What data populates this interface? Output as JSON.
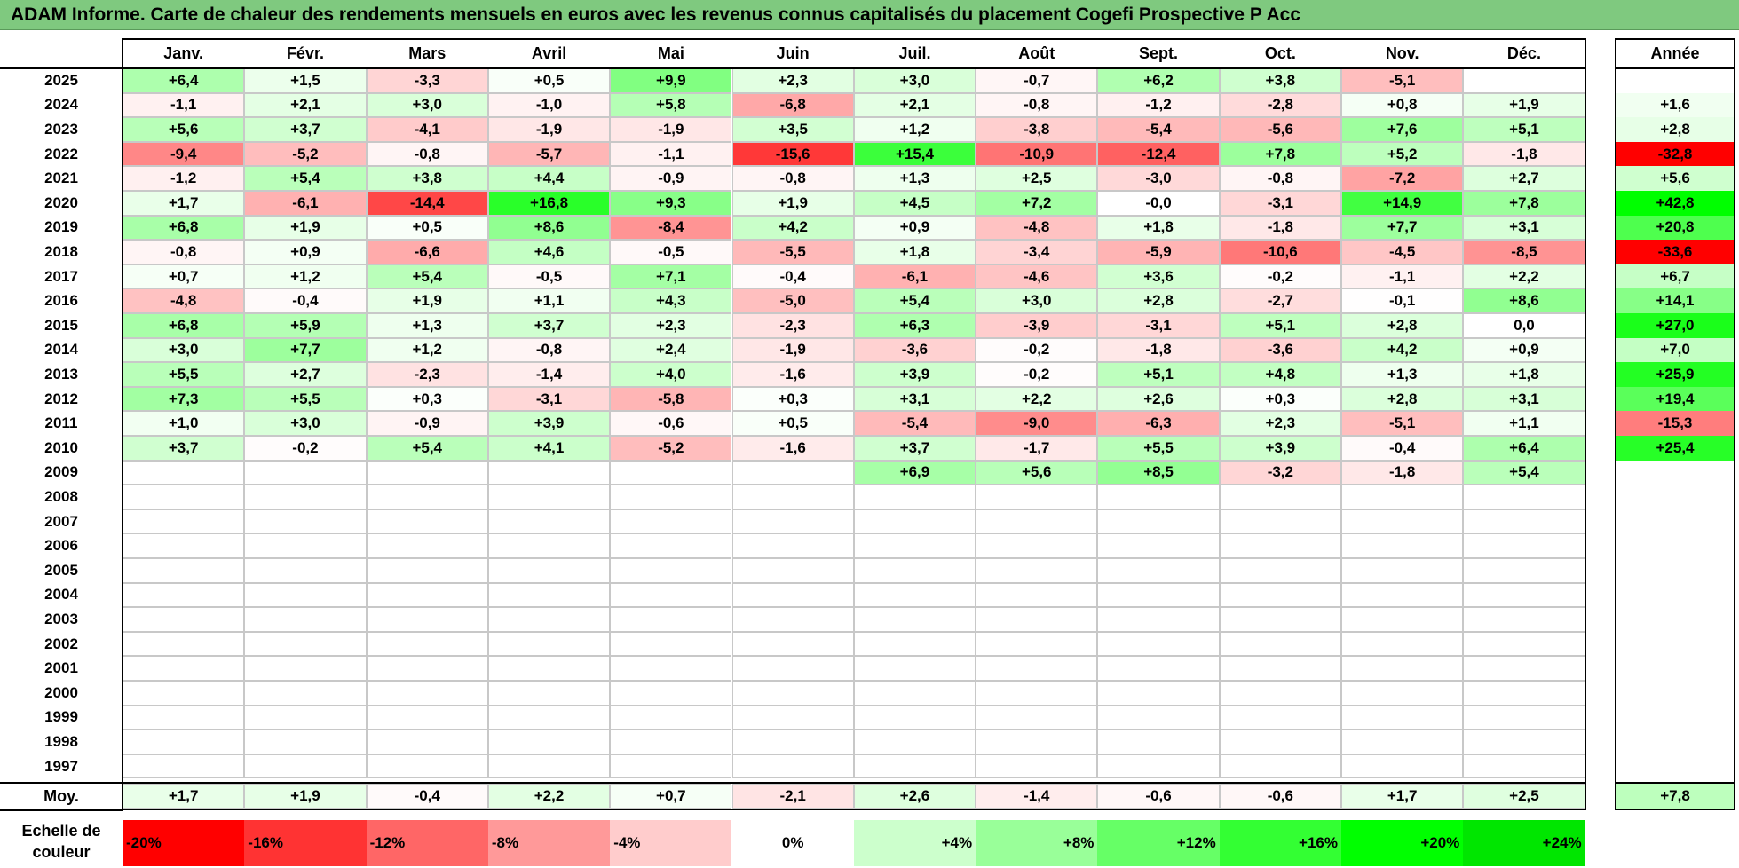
{
  "title": "ADAM Informe. Carte de chaleur des rendements mensuels en euros avec les revenus connus capitalisés du placement Cogefi Prospective P Acc",
  "chart_data": {
    "type": "heatmap",
    "title": "ADAM Informe. Carte de chaleur des rendements mensuels en euros avec les revenus connus capitalisés du placement Cogefi Prospective P Acc",
    "months": [
      "Janv.",
      "Févr.",
      "Mars",
      "Avril",
      "Mai",
      "Juin",
      "Juil.",
      "Août",
      "Sept.",
      "Oct.",
      "Nov.",
      "Déc."
    ],
    "year_header": "Année",
    "rows": [
      {
        "year": "2025",
        "values": [
          "+6,4",
          "+1,5",
          "-3,3",
          "+0,5",
          "+9,9",
          "+2,3",
          "+3,0",
          "-0,7",
          "+6,2",
          "+3,8",
          "-5,1",
          ""
        ],
        "annual": ""
      },
      {
        "year": "2024",
        "values": [
          "-1,1",
          "+2,1",
          "+3,0",
          "-1,0",
          "+5,8",
          "-6,8",
          "+2,1",
          "-0,8",
          "-1,2",
          "-2,8",
          "+0,8",
          "+1,9"
        ],
        "annual": "+1,6"
      },
      {
        "year": "2023",
        "values": [
          "+5,6",
          "+3,7",
          "-4,1",
          "-1,9",
          "-1,9",
          "+3,5",
          "+1,2",
          "-3,8",
          "-5,4",
          "-5,6",
          "+7,6",
          "+5,1"
        ],
        "annual": "+2,8"
      },
      {
        "year": "2022",
        "values": [
          "-9,4",
          "-5,2",
          "-0,8",
          "-5,7",
          "-1,1",
          "-15,6",
          "+15,4",
          "-10,9",
          "-12,4",
          "+7,8",
          "+5,2",
          "-1,8"
        ],
        "annual": "-32,8"
      },
      {
        "year": "2021",
        "values": [
          "-1,2",
          "+5,4",
          "+3,8",
          "+4,4",
          "-0,9",
          "-0,8",
          "+1,3",
          "+2,5",
          "-3,0",
          "-0,8",
          "-7,2",
          "+2,7"
        ],
        "annual": "+5,6"
      },
      {
        "year": "2020",
        "values": [
          "+1,7",
          "-6,1",
          "-14,4",
          "+16,8",
          "+9,3",
          "+1,9",
          "+4,5",
          "+7,2",
          "-0,0",
          "-3,1",
          "+14,9",
          "+7,8"
        ],
        "annual": "+42,8"
      },
      {
        "year": "2019",
        "values": [
          "+6,8",
          "+1,9",
          "+0,5",
          "+8,6",
          "-8,4",
          "+4,2",
          "+0,9",
          "-4,8",
          "+1,8",
          "-1,8",
          "+7,7",
          "+3,1"
        ],
        "annual": "+20,8"
      },
      {
        "year": "2018",
        "values": [
          "-0,8",
          "+0,9",
          "-6,6",
          "+4,6",
          "-0,5",
          "-5,5",
          "+1,8",
          "-3,4",
          "-5,9",
          "-10,6",
          "-4,5",
          "-8,5"
        ],
        "annual": "-33,6"
      },
      {
        "year": "2017",
        "values": [
          "+0,7",
          "+1,2",
          "+5,4",
          "-0,5",
          "+7,1",
          "-0,4",
          "-6,1",
          "-4,6",
          "+3,6",
          "-0,2",
          "-1,1",
          "+2,2"
        ],
        "annual": "+6,7"
      },
      {
        "year": "2016",
        "values": [
          "-4,8",
          "-0,4",
          "+1,9",
          "+1,1",
          "+4,3",
          "-5,0",
          "+5,4",
          "+3,0",
          "+2,8",
          "-2,7",
          "-0,1",
          "+8,6"
        ],
        "annual": "+14,1"
      },
      {
        "year": "2015",
        "values": [
          "+6,8",
          "+5,9",
          "+1,3",
          "+3,7",
          "+2,3",
          "-2,3",
          "+6,3",
          "-3,9",
          "-3,1",
          "+5,1",
          "+2,8",
          "0,0"
        ],
        "annual": "+27,0"
      },
      {
        "year": "2014",
        "values": [
          "+3,0",
          "+7,7",
          "+1,2",
          "-0,8",
          "+2,4",
          "-1,9",
          "-3,6",
          "-0,2",
          "-1,8",
          "-3,6",
          "+4,2",
          "+0,9"
        ],
        "annual": "+7,0"
      },
      {
        "year": "2013",
        "values": [
          "+5,5",
          "+2,7",
          "-2,3",
          "-1,4",
          "+4,0",
          "-1,6",
          "+3,9",
          "-0,2",
          "+5,1",
          "+4,8",
          "+1,3",
          "+1,8"
        ],
        "annual": "+25,9"
      },
      {
        "year": "2012",
        "values": [
          "+7,3",
          "+5,5",
          "+0,3",
          "-3,1",
          "-5,8",
          "+0,3",
          "+3,1",
          "+2,2",
          "+2,6",
          "+0,3",
          "+2,8",
          "+3,1"
        ],
        "annual": "+19,4"
      },
      {
        "year": "2011",
        "values": [
          "+1,0",
          "+3,0",
          "-0,9",
          "+3,9",
          "-0,6",
          "+0,5",
          "-5,4",
          "-9,0",
          "-6,3",
          "+2,3",
          "-5,1",
          "+1,1"
        ],
        "annual": "-15,3"
      },
      {
        "year": "2010",
        "values": [
          "+3,7",
          "-0,2",
          "+5,4",
          "+4,1",
          "-5,2",
          "-1,6",
          "+3,7",
          "-1,7",
          "+5,5",
          "+3,9",
          "-0,4",
          "+6,4"
        ],
        "annual": "+25,4"
      },
      {
        "year": "2009",
        "values": [
          "",
          "",
          "",
          "",
          "",
          "",
          "+6,9",
          "+5,6",
          "+8,5",
          "-3,2",
          "-1,8",
          "+5,4"
        ],
        "annual": ""
      },
      {
        "year": "2008",
        "values": [
          "",
          "",
          "",
          "",
          "",
          "",
          "",
          "",
          "",
          "",
          "",
          ""
        ],
        "annual": ""
      },
      {
        "year": "2007",
        "values": [
          "",
          "",
          "",
          "",
          "",
          "",
          "",
          "",
          "",
          "",
          "",
          ""
        ],
        "annual": ""
      },
      {
        "year": "2006",
        "values": [
          "",
          "",
          "",
          "",
          "",
          "",
          "",
          "",
          "",
          "",
          "",
          ""
        ],
        "annual": ""
      },
      {
        "year": "2005",
        "values": [
          "",
          "",
          "",
          "",
          "",
          "",
          "",
          "",
          "",
          "",
          "",
          ""
        ],
        "annual": ""
      },
      {
        "year": "2004",
        "values": [
          "",
          "",
          "",
          "",
          "",
          "",
          "",
          "",
          "",
          "",
          "",
          ""
        ],
        "annual": ""
      },
      {
        "year": "2003",
        "values": [
          "",
          "",
          "",
          "",
          "",
          "",
          "",
          "",
          "",
          "",
          "",
          ""
        ],
        "annual": ""
      },
      {
        "year": "2002",
        "values": [
          "",
          "",
          "",
          "",
          "",
          "",
          "",
          "",
          "",
          "",
          "",
          ""
        ],
        "annual": ""
      },
      {
        "year": "2001",
        "values": [
          "",
          "",
          "",
          "",
          "",
          "",
          "",
          "",
          "",
          "",
          "",
          ""
        ],
        "annual": ""
      },
      {
        "year": "2000",
        "values": [
          "",
          "",
          "",
          "",
          "",
          "",
          "",
          "",
          "",
          "",
          "",
          ""
        ],
        "annual": ""
      },
      {
        "year": "1999",
        "values": [
          "",
          "",
          "",
          "",
          "",
          "",
          "",
          "",
          "",
          "",
          "",
          ""
        ],
        "annual": ""
      },
      {
        "year": "1998",
        "values": [
          "",
          "",
          "",
          "",
          "",
          "",
          "",
          "",
          "",
          "",
          "",
          ""
        ],
        "annual": ""
      },
      {
        "year": "1997",
        "values": [
          "",
          "",
          "",
          "",
          "",
          "",
          "",
          "",
          "",
          "",
          "",
          ""
        ],
        "annual": ""
      }
    ],
    "average": {
      "label": "Moy.",
      "values": [
        "+1,7",
        "+1,9",
        "-0,4",
        "+2,2",
        "+0,7",
        "-2,1",
        "+2,6",
        "-1,4",
        "-0,6",
        "-0,6",
        "+1,7",
        "+2,5"
      ],
      "annual": "+7,8"
    },
    "color_scale": {
      "label_line1": "Echelle de",
      "label_line2": "couleur",
      "steps": [
        {
          "label": "-20%",
          "value": -20,
          "color": "#ff0000"
        },
        {
          "label": "-16%",
          "value": -16,
          "color": "#ff3333"
        },
        {
          "label": "-12%",
          "value": -12,
          "color": "#ff6666"
        },
        {
          "label": "-8%",
          "value": -8,
          "color": "#ff9999"
        },
        {
          "label": "-4%",
          "value": -4,
          "color": "#ffcccc"
        },
        {
          "label": "0%",
          "value": 0,
          "color": "#ffffff"
        },
        {
          "label": "+4%",
          "value": 4,
          "color": "#ccffcc"
        },
        {
          "label": "+8%",
          "value": 8,
          "color": "#99ff99"
        },
        {
          "label": "+12%",
          "value": 12,
          "color": "#66ff66"
        },
        {
          "label": "+16%",
          "value": 16,
          "color": "#33ff33"
        },
        {
          "label": "+20%",
          "value": 20,
          "color": "#00ff00"
        },
        {
          "label": "+24%",
          "value": 24,
          "color": "#00e600"
        }
      ]
    },
    "colors": {
      "negative": "#ff0000",
      "neutral": "#ffffff",
      "positive": "#00ff00"
    }
  }
}
